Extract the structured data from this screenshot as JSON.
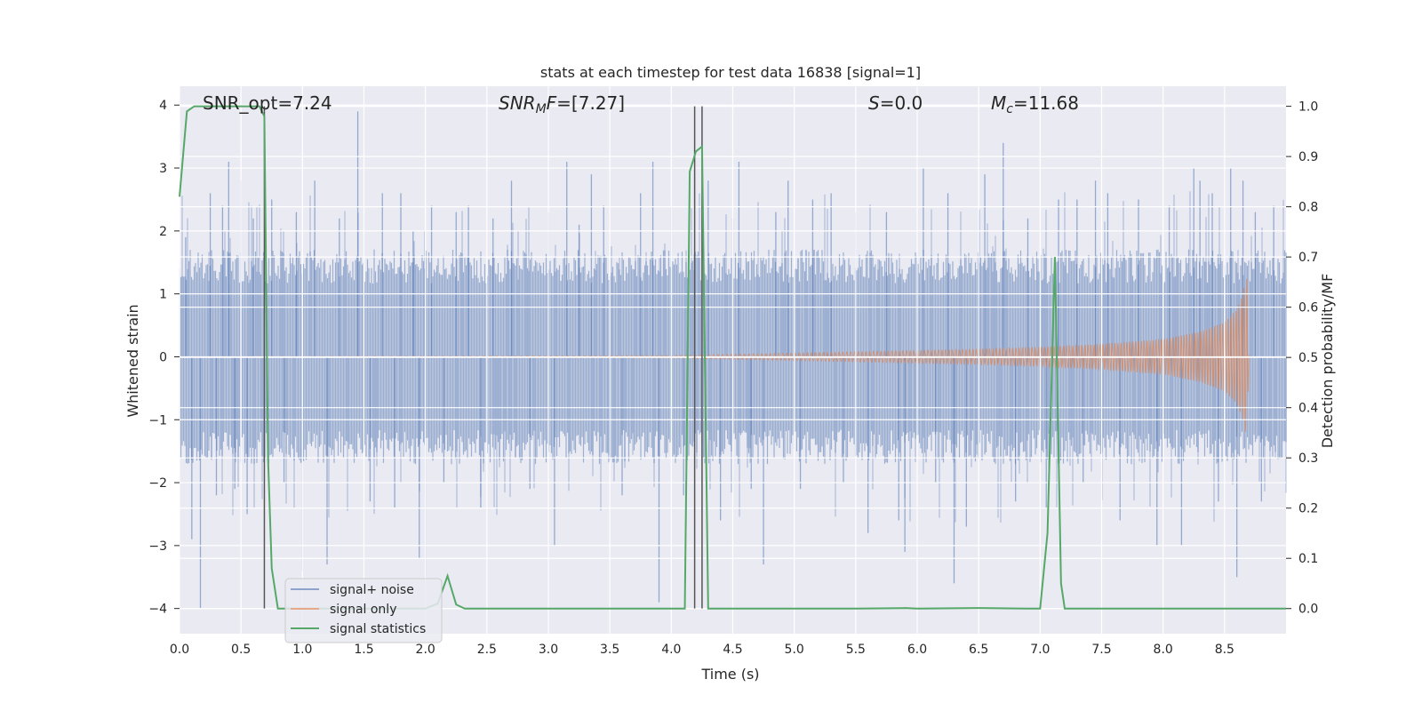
{
  "chart_data": {
    "type": "line",
    "title": "stats at each timestep for test data 16838 [signal=1]",
    "xlabel": "Time (s)",
    "ylabel": "Whitened strain",
    "y2label": "Detection probability/MF",
    "xlim": [
      0.0,
      9.0
    ],
    "ylim": [
      -4.4,
      4.3
    ],
    "y2lim": [
      -0.05,
      1.04
    ],
    "xticks": [
      "0.0",
      "0.5",
      "1.0",
      "1.5",
      "2.0",
      "2.5",
      "3.0",
      "3.5",
      "4.0",
      "4.5",
      "5.0",
      "5.5",
      "6.0",
      "6.5",
      "7.0",
      "7.5",
      "8.0",
      "8.5"
    ],
    "yticks": [
      "4",
      "3",
      "2",
      "1",
      "0",
      "−1",
      "−2",
      "−3",
      "−4"
    ],
    "y2ticks": [
      "1.0",
      "0.9",
      "0.8",
      "0.7",
      "0.6",
      "0.5",
      "0.4",
      "0.3",
      "0.2",
      "0.1",
      "0.0"
    ],
    "grid": true,
    "background": "#eaeaf2",
    "colors": {
      "noise": "#4c72b0",
      "signal": "#dd8452",
      "stats": "#55a868",
      "marker": "#555555"
    },
    "annotations": {
      "snr_opt": "SNR_opt=7.24",
      "snr_mf_prefix": "SNR",
      "snr_mf_sub": "M",
      "snr_mf_mid": "F",
      "snr_mf_value": "=[7.27]",
      "s_label": "S",
      "s_value": "=0.0",
      "mc_label": "M",
      "mc_sub": "c",
      "mc_value": "=11.68"
    },
    "legend": {
      "position": "lower-left",
      "entries": [
        "signal+ noise",
        "signal only",
        "signal statistics"
      ]
    },
    "noise_band": {
      "typical_abs": 1.55,
      "max": 3.9,
      "min": -4.0
    },
    "noise_spikes": [
      [
        0.05,
        1.9
      ],
      [
        0.1,
        -2.9
      ],
      [
        0.17,
        -4.0
      ],
      [
        0.25,
        2.6
      ],
      [
        0.3,
        -2.2
      ],
      [
        0.35,
        2.4
      ],
      [
        0.4,
        3.1
      ],
      [
        0.45,
        -2.1
      ],
      [
        0.5,
        2.8
      ],
      [
        0.55,
        -2.5
      ],
      [
        0.6,
        2.2
      ],
      [
        0.75,
        2.5
      ],
      [
        0.85,
        -2.0
      ],
      [
        0.95,
        2.3
      ],
      [
        1.0,
        -3.4
      ],
      [
        1.1,
        2.8
      ],
      [
        1.2,
        -3.3
      ],
      [
        1.3,
        2.2
      ],
      [
        1.45,
        3.9
      ],
      [
        1.55,
        -2.3
      ],
      [
        1.65,
        2.6
      ],
      [
        1.75,
        -2.4
      ],
      [
        1.8,
        2.6
      ],
      [
        1.9,
        2.0
      ],
      [
        1.95,
        -3.2
      ],
      [
        2.0,
        -3.5
      ],
      [
        2.05,
        2.4
      ],
      [
        2.15,
        -2.0
      ],
      [
        2.25,
        2.3
      ],
      [
        2.35,
        2.4
      ],
      [
        2.45,
        -2.4
      ],
      [
        2.55,
        2.2
      ],
      [
        2.7,
        2.8
      ],
      [
        2.85,
        -2.1
      ],
      [
        3.0,
        2.3
      ],
      [
        3.05,
        -3.0
      ],
      [
        3.15,
        3.1
      ],
      [
        3.25,
        2.1
      ],
      [
        3.35,
        2.9
      ],
      [
        3.45,
        2.4
      ],
      [
        3.6,
        -2.2
      ],
      [
        3.75,
        2.6
      ],
      [
        3.85,
        3.1
      ],
      [
        3.9,
        -3.9
      ],
      [
        4.0,
        2.4
      ],
      [
        4.1,
        -2.2
      ],
      [
        4.3,
        2.8
      ],
      [
        4.4,
        -2.6
      ],
      [
        4.5,
        2.2
      ],
      [
        4.55,
        3.1
      ],
      [
        4.65,
        -2.1
      ],
      [
        4.75,
        -3.3
      ],
      [
        4.85,
        2.3
      ],
      [
        4.95,
        2.8
      ],
      [
        5.05,
        -2.1
      ],
      [
        5.15,
        2.5
      ],
      [
        5.3,
        2.6
      ],
      [
        5.4,
        -2.0
      ],
      [
        5.5,
        2.3
      ],
      [
        5.6,
        -2.8
      ],
      [
        5.75,
        2.3
      ],
      [
        5.85,
        -2.6
      ],
      [
        5.9,
        -3.1
      ],
      [
        6.05,
        3.0
      ],
      [
        6.15,
        -2.0
      ],
      [
        6.25,
        2.6
      ],
      [
        6.3,
        -3.6
      ],
      [
        6.4,
        -2.7
      ],
      [
        6.55,
        2.9
      ],
      [
        6.7,
        3.4
      ],
      [
        6.8,
        -2.3
      ],
      [
        6.9,
        2.2
      ],
      [
        7.05,
        -2.4
      ],
      [
        7.15,
        2.5
      ],
      [
        7.3,
        2.5
      ],
      [
        7.35,
        -2.0
      ],
      [
        7.45,
        2.8
      ],
      [
        7.55,
        2.6
      ],
      [
        7.65,
        -2.6
      ],
      [
        7.8,
        2.5
      ],
      [
        7.95,
        -3.0
      ],
      [
        8.05,
        2.4
      ],
      [
        8.15,
        -3.0
      ],
      [
        8.25,
        3.0
      ],
      [
        8.3,
        2.8
      ],
      [
        8.4,
        2.6
      ],
      [
        8.45,
        -2.3
      ],
      [
        8.55,
        3.0
      ],
      [
        8.6,
        -3.5
      ],
      [
        8.65,
        2.8
      ],
      [
        8.75,
        2.3
      ],
      [
        8.8,
        -2.3
      ],
      [
        8.9,
        2.4
      ]
    ],
    "signal_envelope": [
      [
        0.0,
        0.0
      ],
      [
        4.0,
        0.02
      ],
      [
        4.5,
        0.04
      ],
      [
        5.0,
        0.06
      ],
      [
        5.5,
        0.08
      ],
      [
        6.0,
        0.1
      ],
      [
        6.5,
        0.12
      ],
      [
        7.0,
        0.15
      ],
      [
        7.5,
        0.2
      ],
      [
        8.0,
        0.28
      ],
      [
        8.3,
        0.4
      ],
      [
        8.5,
        0.55
      ],
      [
        8.6,
        0.75
      ],
      [
        8.65,
        1.0
      ],
      [
        8.68,
        1.3
      ],
      [
        8.7,
        0.0
      ],
      [
        9.0,
        0.0
      ]
    ],
    "signal_statistics": {
      "x": [
        0.0,
        0.06,
        0.12,
        0.2,
        0.4,
        0.55,
        0.65,
        0.69,
        0.72,
        0.75,
        0.8,
        0.9,
        1.0,
        1.2,
        1.5,
        1.8,
        2.0,
        2.1,
        2.18,
        2.25,
        2.32,
        2.5,
        3.0,
        3.5,
        4.0,
        4.11,
        4.15,
        4.2,
        4.25,
        4.3,
        4.6,
        5.0,
        5.5,
        5.9,
        6.0,
        6.5,
        6.9,
        7.0,
        7.06,
        7.12,
        7.17,
        7.2,
        7.3,
        7.5,
        8.0,
        8.5,
        9.0
      ],
      "y": [
        0.82,
        0.99,
        1.0,
        1.0,
        1.0,
        1.0,
        1.0,
        0.98,
        0.3,
        0.08,
        0.0,
        0.0,
        0.0,
        0.0,
        0.0,
        0.0,
        0.0,
        0.01,
        0.065,
        0.008,
        0.0,
        0.0,
        0.0,
        0.0,
        0.0,
        0.0,
        0.87,
        0.91,
        0.92,
        0.0,
        0.0,
        0.0,
        0.0,
        0.001,
        0.0,
        0.001,
        0.0,
        0.0,
        0.15,
        0.7,
        0.05,
        0.0,
        0.0,
        0.0,
        0.0,
        0.0,
        0.0
      ]
    },
    "vertical_markers": [
      0.69,
      4.19,
      4.25
    ]
  }
}
